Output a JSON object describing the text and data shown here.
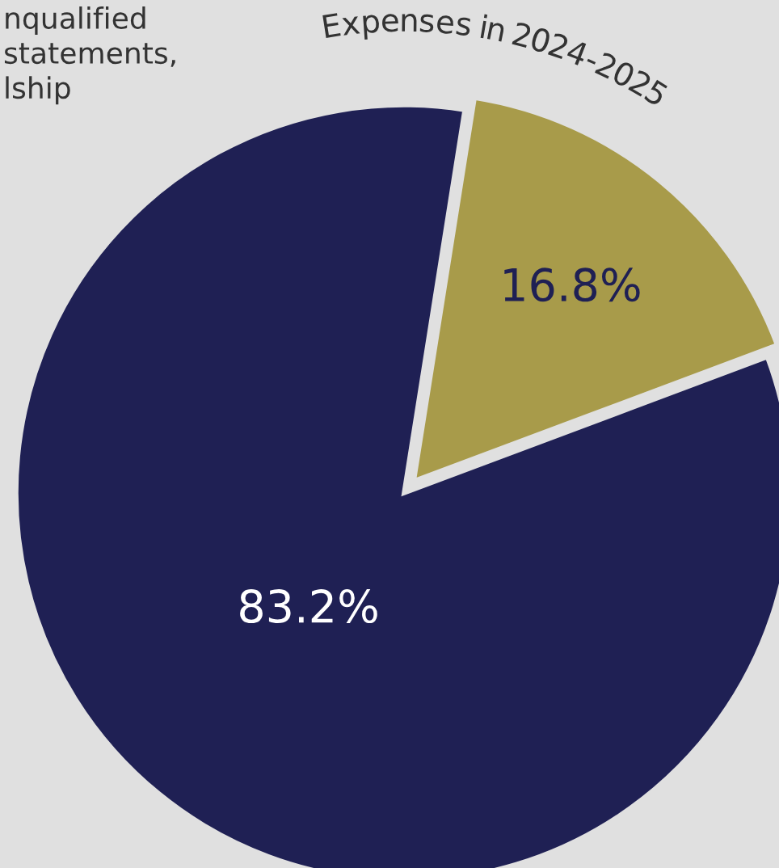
{
  "chart_data": {
    "type": "pie",
    "categories": [
      "Expenses in 2024-2025",
      null
    ],
    "values": [
      16.8,
      83.2
    ],
    "colors": [
      "#a89b4a",
      "#1f2054"
    ],
    "value_labels": [
      "16.8%",
      "83.2%"
    ],
    "annotations": [
      "nqualified\nstatements,\nlship"
    ]
  }
}
